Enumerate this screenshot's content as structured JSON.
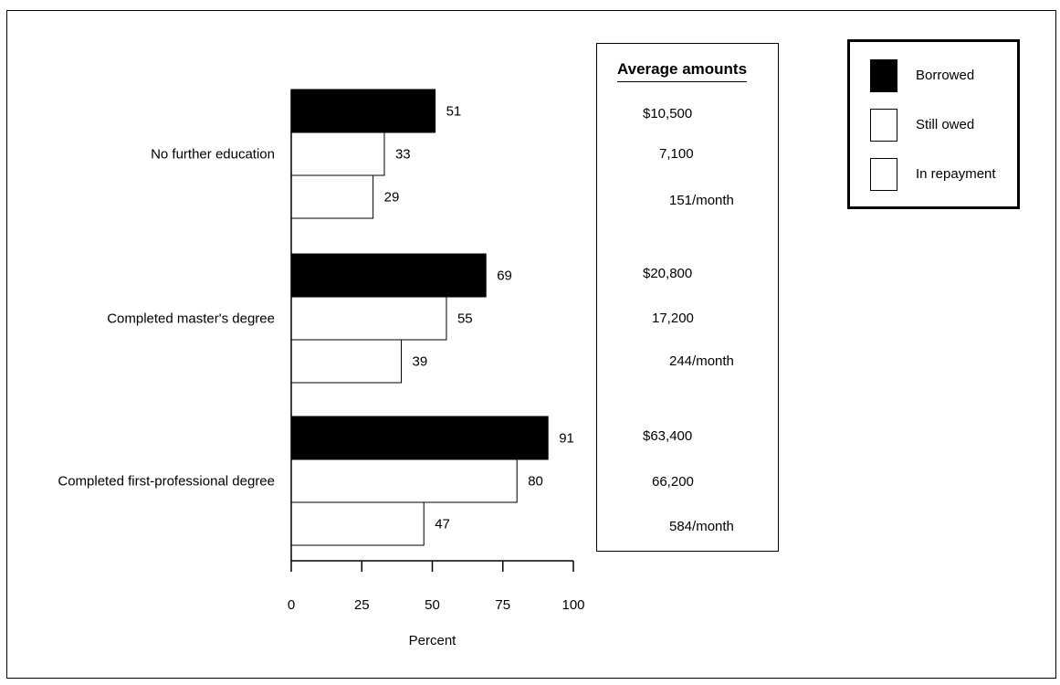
{
  "chart_data": {
    "type": "bar",
    "orientation": "horizontal",
    "categories": [
      "No further education",
      "Completed master's degree",
      "Completed first-professional degree"
    ],
    "series": [
      {
        "name": "Borrowed",
        "color": "#000000",
        "values": [
          51,
          69,
          91
        ]
      },
      {
        "name": "Still owed",
        "color": "#ffffff",
        "values": [
          33,
          55,
          80
        ]
      },
      {
        "name": "In repayment",
        "color": "#ffffff",
        "values": [
          29,
          39,
          47
        ]
      }
    ],
    "xlabel": "Percent",
    "ylabel": "",
    "xlim": [
      0,
      100
    ],
    "xticks": [
      0,
      25,
      50,
      75,
      100
    ],
    "grid": false,
    "legend_position": "top-right",
    "data_labels": true
  },
  "amounts_table": {
    "title": "Average amounts",
    "groups": [
      {
        "borrowed": "$10,500",
        "still_owed": "7,100",
        "repayment": "151/month"
      },
      {
        "borrowed": "$20,800",
        "still_owed": "17,200",
        "repayment": "244/month"
      },
      {
        "borrowed": "$63,400",
        "still_owed": "66,200",
        "repayment": "584/month"
      }
    ]
  },
  "legend": {
    "items": [
      {
        "label": "Borrowed",
        "color": "#000000"
      },
      {
        "label": "Still owed",
        "color": "#ffffff"
      },
      {
        "label": "In repayment",
        "color": "#ffffff"
      }
    ]
  }
}
